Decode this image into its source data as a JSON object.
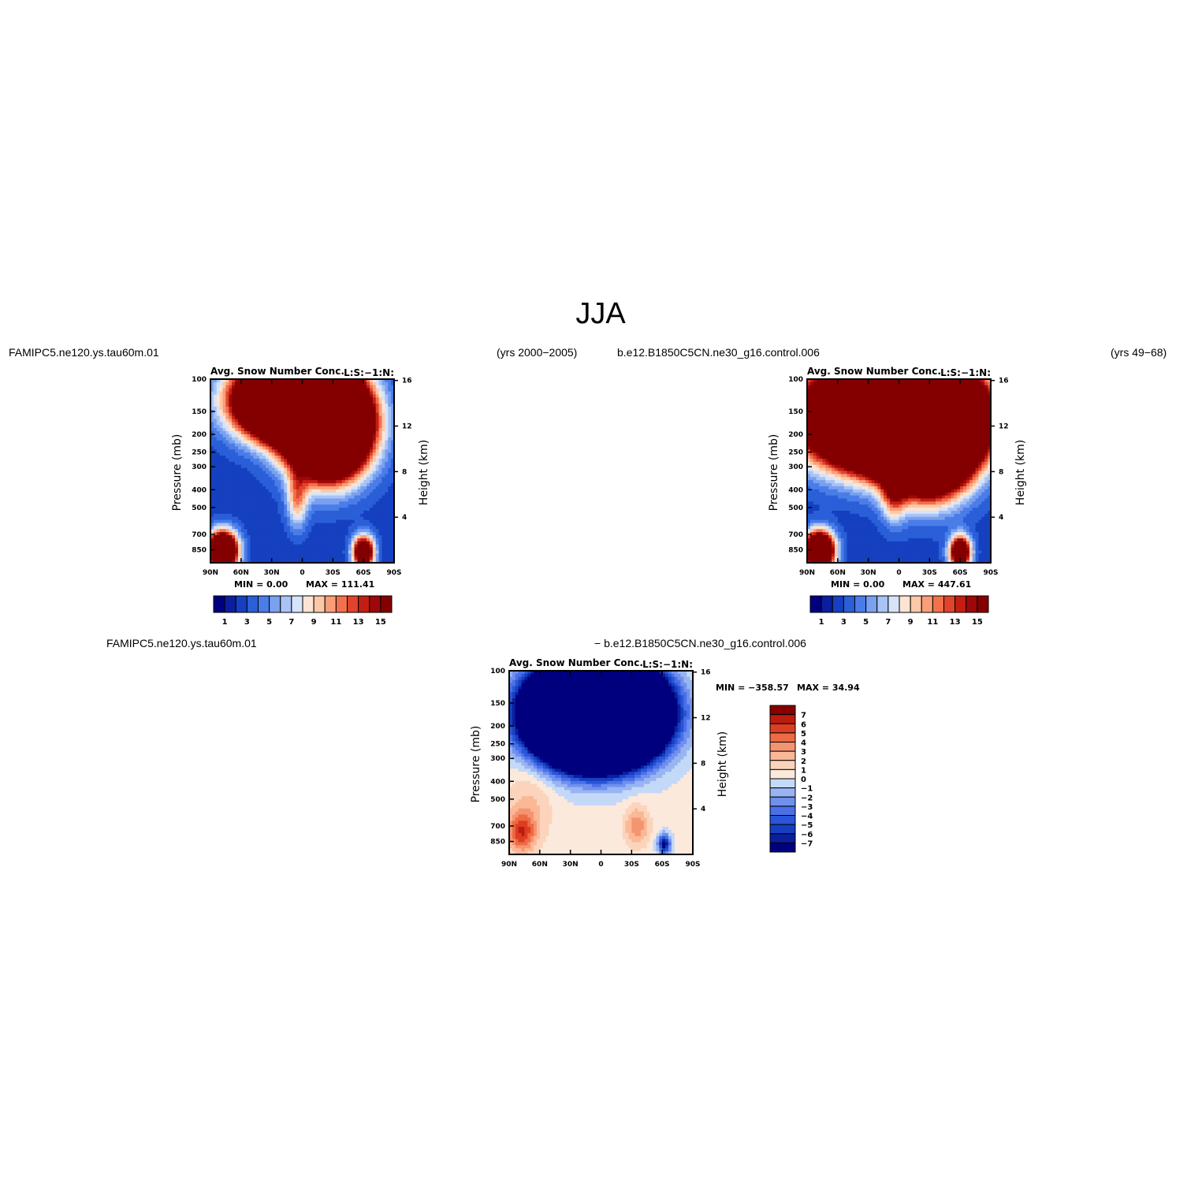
{
  "page_title": "JJA",
  "colors": {
    "positive_scale": [
      "#00007f",
      "#0a1e9e",
      "#1540c0",
      "#2a5fd8",
      "#4a7de8",
      "#7aa0f0",
      "#a8c4f5",
      "#d6e4fa",
      "#fde4d2",
      "#fcc8a8",
      "#fa9e78",
      "#f2704c",
      "#e0442a",
      "#c41e14",
      "#9e0808",
      "#840000"
    ],
    "diff_scale": [
      "#00007f",
      "#0a1e9e",
      "#1540c0",
      "#2a55d8",
      "#4a70e8",
      "#7090ee",
      "#98b4f2",
      "#c4d8f8",
      "#fbe9dc",
      "#fcd4bc",
      "#fab896",
      "#f59470",
      "#ee6a44",
      "#dc3e22",
      "#bc1c10",
      "#870000"
    ]
  },
  "chart_data": [
    {
      "type": "heatmap",
      "case_name": "FAMIPC5.ne120.ys.tau60m.01",
      "years": "(yrs 2000−2005)",
      "title": "Avg. Snow Number Conc.",
      "subtitle_right": "L:S:−1:N:",
      "ylabel": "Pressure (mb)",
      "ylabel_right": "Height (km)",
      "x_ticks": [
        "90N",
        "60N",
        "30N",
        "0",
        "30S",
        "60S",
        "90S"
      ],
      "y_ticks": [
        "100",
        "150",
        "200",
        "250",
        "300",
        "400",
        "500",
        "700",
        "850"
      ],
      "y_ticks_right": [
        "16",
        "12",
        "8",
        "4"
      ],
      "min_text": "MIN =    0.00",
      "max_text": "MAX = 111.41",
      "colorbar_labels": [
        "1",
        "3",
        "5",
        "7",
        "9",
        "11",
        "13",
        "15"
      ],
      "contour_levels": [
        1,
        2,
        3,
        4,
        5,
        6,
        7,
        8,
        9,
        10,
        11,
        12,
        13,
        14,
        15
      ],
      "ylim": [
        1000,
        100
      ],
      "xlim": [
        90,
        -90
      ],
      "field_features": [
        {
          "lat": 12,
          "p": 130,
          "value": 60,
          "lat_width": 46,
          "p_width": 0.42
        },
        {
          "lat": -25,
          "p": 180,
          "value": 60,
          "lat_width": 36,
          "p_width": 0.55
        },
        {
          "lat": 78,
          "p": 860,
          "value": 30,
          "lat_width": 14,
          "p_width": 0.23
        },
        {
          "lat": -60,
          "p": 880,
          "value": 22,
          "lat_width": 10,
          "p_width": 0.2
        },
        {
          "lat": 5,
          "p": 450,
          "value": 7.5,
          "lat_width": 10,
          "p_width": 0.35
        }
      ]
    },
    {
      "type": "heatmap",
      "case_name": "b.e12.B1850C5CN.ne30_g16.control.006",
      "years": "(yrs 49−68)",
      "title": "Avg. Snow Number Conc.",
      "subtitle_right": "L:S:−1:N:",
      "ylabel": "Pressure (mb)",
      "ylabel_right": "Height (km)",
      "x_ticks": [
        "90N",
        "60N",
        "30N",
        "0",
        "30S",
        "60S",
        "90S"
      ],
      "y_ticks": [
        "100",
        "150",
        "200",
        "250",
        "300",
        "400",
        "500",
        "700",
        "850"
      ],
      "y_ticks_right": [
        "16",
        "12",
        "8",
        "4"
      ],
      "min_text": "MIN =    0.00",
      "max_text": "MAX = 447.61",
      "colorbar_labels": [
        "1",
        "3",
        "5",
        "7",
        "9",
        "11",
        "13",
        "15"
      ],
      "contour_levels": [
        1,
        2,
        3,
        4,
        5,
        6,
        7,
        8,
        9,
        10,
        11,
        12,
        13,
        14,
        15
      ],
      "ylim": [
        1000,
        100
      ],
      "xlim": [
        90,
        -90
      ],
      "field_features": [
        {
          "lat": 5,
          "p": 160,
          "value": 80,
          "lat_width": 70,
          "p_width": 0.55
        },
        {
          "lat": -30,
          "p": 200,
          "value": 60,
          "lat_width": 36,
          "p_width": 0.6
        },
        {
          "lat": 78,
          "p": 860,
          "value": 30,
          "lat_width": 14,
          "p_width": 0.23
        },
        {
          "lat": -60,
          "p": 880,
          "value": 22,
          "lat_width": 10,
          "p_width": 0.2
        },
        {
          "lat": 5,
          "p": 420,
          "value": 7.5,
          "lat_width": 12,
          "p_width": 0.35
        }
      ]
    },
    {
      "type": "heatmap",
      "case_name": "FAMIPC5.ne120.ys.tau60m.01",
      "case_name_2": "− b.e12.B1850C5CN.ne30_g16.control.006",
      "title": "Avg. Snow Number Conc.",
      "subtitle_right": "L:S:−1:N:",
      "ylabel": "Pressure (mb)",
      "ylabel_right": "Height (km)",
      "x_ticks": [
        "90N",
        "60N",
        "30N",
        "0",
        "30S",
        "60S",
        "90S"
      ],
      "y_ticks": [
        "100",
        "150",
        "200",
        "250",
        "300",
        "400",
        "500",
        "700",
        "850"
      ],
      "y_ticks_right": [
        "16",
        "12",
        "8",
        "4"
      ],
      "min_text": "MIN = −358.57",
      "max_text": "MAX =   34.94",
      "colorbar_labels": [
        "7",
        "6",
        "5",
        "4",
        "3",
        "2",
        "1",
        "0",
        "−1",
        "−2",
        "−3",
        "−4",
        "−5",
        "−6",
        "−7"
      ],
      "contour_levels": [
        -7,
        -6,
        -5,
        -4,
        -3,
        -2,
        -1,
        0,
        1,
        2,
        3,
        4,
        5,
        6,
        7
      ],
      "ylim": [
        1000,
        100
      ],
      "xlim": [
        90,
        -90
      ],
      "field_features": [
        {
          "lat": 5,
          "p": 170,
          "value": -120,
          "lat_width": 48,
          "p_width": 0.48
        },
        {
          "lat": 78,
          "p": 760,
          "value": 5,
          "lat_width": 14,
          "p_width": 0.25
        },
        {
          "lat": 70,
          "p": 520,
          "value": 1.8,
          "lat_width": 24,
          "p_width": 0.5
        },
        {
          "lat": -35,
          "p": 700,
          "value": 3.5,
          "lat_width": 12,
          "p_width": 0.25
        },
        {
          "lat": -62,
          "p": 880,
          "value": -8,
          "lat_width": 6,
          "p_width": 0.12
        },
        {
          "lat": 50,
          "p": 120,
          "value": 5,
          "lat_width": 4,
          "p_width": 0.15
        },
        {
          "lat": -45,
          "p": 120,
          "value": 5,
          "lat_width": 4,
          "p_width": 0.15
        }
      ]
    }
  ]
}
